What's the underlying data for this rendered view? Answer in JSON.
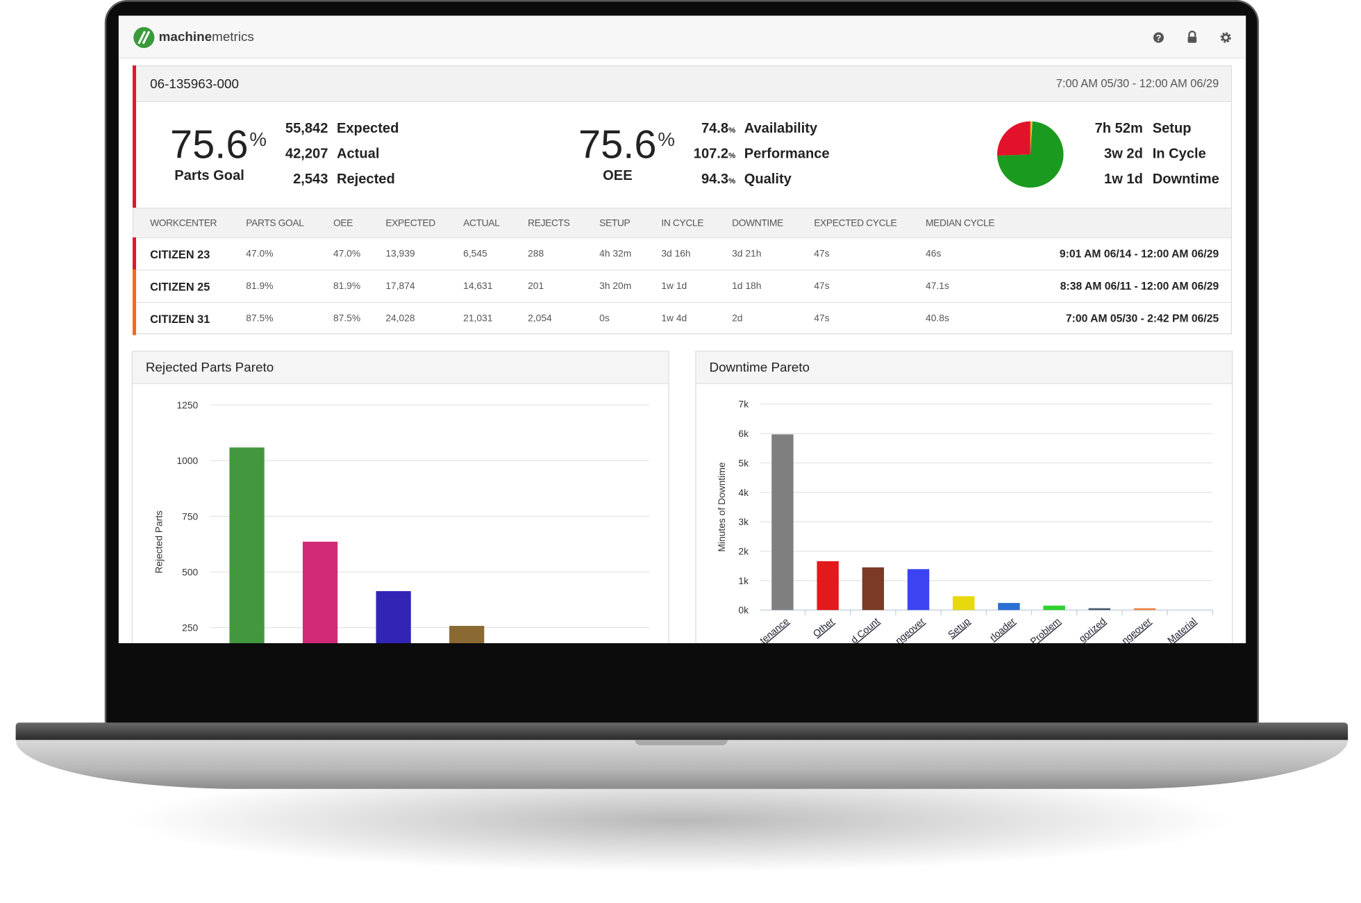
{
  "header": {
    "brand_bold": "machine",
    "brand_light": "metrics"
  },
  "card": {
    "title": "06-135963-000",
    "date_range": "7:00 AM 05/30 - 12:00 AM 06/29",
    "color": "#e0182d"
  },
  "summary": {
    "parts_goal": {
      "value": "75.6",
      "unit": "%",
      "label": "Parts Goal"
    },
    "counts": [
      {
        "value": "55,842",
        "label": "Expected"
      },
      {
        "value": "42,207",
        "label": "Actual"
      },
      {
        "value": "2,543",
        "label": "Rejected"
      }
    ],
    "oee": {
      "value": "75.6",
      "unit": "%",
      "label": "OEE"
    },
    "factors": [
      {
        "value": "74.8",
        "unit": "%",
        "label": "Availability"
      },
      {
        "value": "107.2",
        "unit": "%",
        "label": "Performance"
      },
      {
        "value": "94.3",
        "unit": "%",
        "label": "Quality"
      }
    ]
  },
  "table": {
    "headers": [
      "WORKCENTER",
      "PARTS GOAL",
      "OEE",
      "EXPECTED",
      "ACTUAL",
      "REJECTS",
      "SETUP",
      "IN CYCLE",
      "DOWNTIME",
      "EXPECTED CYCLE",
      "MEDIAN CYCLE"
    ],
    "rows": [
      {
        "color": "#e0182d",
        "cells": [
          "CITIZEN 23",
          "47.0%",
          "47.0%",
          "13,939",
          "6,545",
          "288",
          "4h 32m",
          "3d 16h",
          "3d 21h",
          "47s",
          "46s",
          "9:01 AM 06/14 - 12:00 AM 06/29"
        ]
      },
      {
        "color": "#f26a1b",
        "cells": [
          "CITIZEN 25",
          "81.9%",
          "81.9%",
          "17,874",
          "14,631",
          "201",
          "3h 20m",
          "1w 1d",
          "1d 18h",
          "47s",
          "47.1s",
          "8:38 AM 06/11 - 12:00 AM 06/29"
        ]
      },
      {
        "color": "#f26a1b",
        "cells": [
          "CITIZEN 31",
          "87.5%",
          "87.5%",
          "24,028",
          "21,031",
          "2,054",
          "0s",
          "1w 4d",
          "2d",
          "47s",
          "40.8s",
          "7:00 AM 05/30 - 2:42 PM 06/25"
        ]
      }
    ]
  },
  "chart_data": [
    {
      "type": "pie",
      "categories": [
        "Setup",
        "In Cycle",
        "Downtime"
      ],
      "values": [
        472,
        33120,
        11520
      ],
      "value_labels": [
        "7h 52m",
        "3w 2d",
        "1w 1d"
      ],
      "colors": [
        "#e8c31c",
        "#1a9b1f",
        "#e3122b"
      ]
    },
    {
      "type": "bar",
      "title": "Rejected Parts Pareto",
      "y_label": "Rejected Parts",
      "values": [
        1059,
        636,
        414,
        258
      ],
      "colors": [
        "#43983f",
        "#d02a77",
        "#3225b6",
        "#8a6a32"
      ],
      "ylim": [
        0,
        1250
      ],
      "yticks": [
        250,
        500,
        750,
        1000,
        1250
      ],
      "grid": true
    },
    {
      "type": "bar",
      "title": "Downtime Pareto",
      "y_label": "Minutes of Downtime",
      "categories": [
        "tenance",
        "Other",
        "d Count",
        "ngeover",
        "Setup",
        "rloader",
        "Problem",
        "gorized",
        "ngeover",
        "Material"
      ],
      "values": [
        5970,
        1660,
        1450,
        1390,
        470,
        240,
        150,
        60,
        60,
        0
      ],
      "colors": [
        "#7f7f7f",
        "#e31a1c",
        "#7b3a26",
        "#3b44f0",
        "#e8d80e",
        "#2a6fd1",
        "#2fd02f",
        "#445566",
        "#f08040",
        "#999999"
      ],
      "ylim": [
        0,
        7000
      ],
      "yticks": [
        {
          "value": 0,
          "label": "0k"
        },
        {
          "value": 1000,
          "label": "1k"
        },
        {
          "value": 2000,
          "label": "2k"
        },
        {
          "value": 3000,
          "label": "3k"
        },
        {
          "value": 4000,
          "label": "4k"
        },
        {
          "value": 5000,
          "label": "5k"
        },
        {
          "value": 6000,
          "label": "6k"
        },
        {
          "value": 7000,
          "label": "7k"
        }
      ],
      "grid": true
    }
  ]
}
